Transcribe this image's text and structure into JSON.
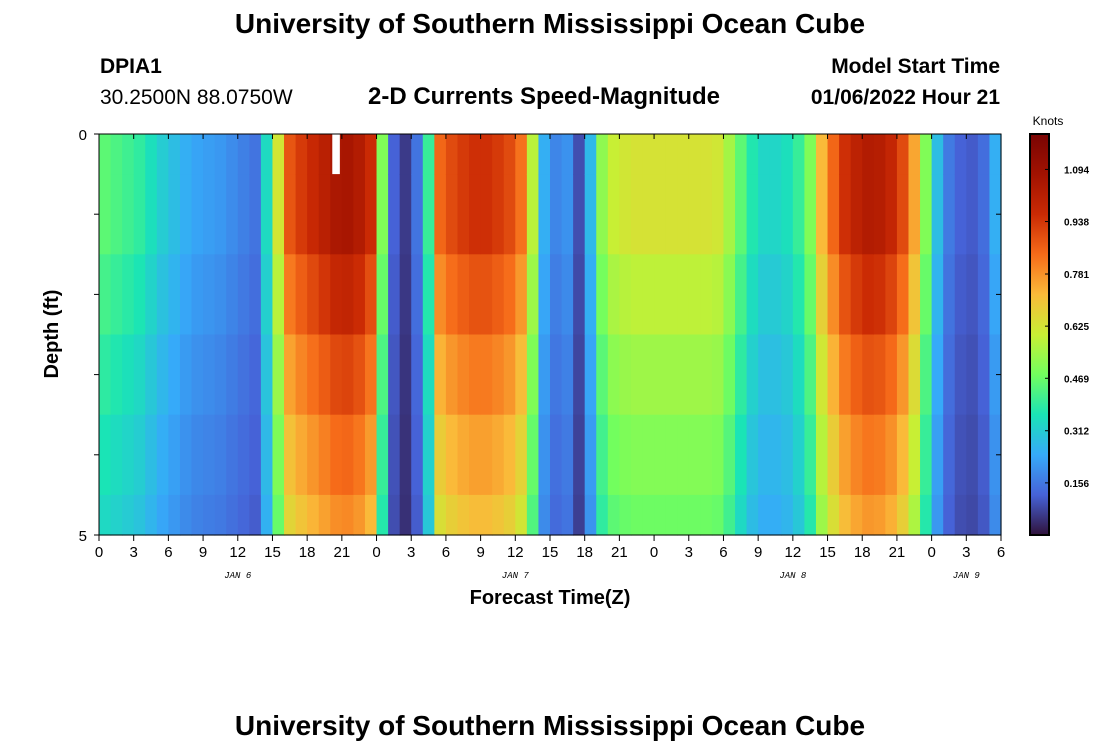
{
  "header": {
    "title": "University of Southern Mississippi Ocean Cube",
    "station_id": "DPIA1",
    "coords": "30.2500N  88.0750W",
    "subtitle": "2-D Currents Speed-Magnitude",
    "model_label": "Model Start Time",
    "model_time": "01/06/2022 Hour 21"
  },
  "footer": {
    "title": "University of Southern Mississippi Ocean Cube"
  },
  "chart_data": {
    "type": "heatmap",
    "title": "2-D Currents Speed-Magnitude",
    "xlabel": "Forecast Time(Z)",
    "ylabel": "Depth (ft)",
    "ylim": [
      0,
      5
    ],
    "y_ticks": [
      "0",
      "5"
    ],
    "x_tick_labels": [
      "0",
      "3",
      "6",
      "9",
      "12",
      "15",
      "18",
      "21",
      "0",
      "3",
      "6",
      "9",
      "12",
      "15",
      "18",
      "21",
      "0",
      "3",
      "6",
      "9",
      "12",
      "15",
      "18",
      "21",
      "0",
      "3",
      "6"
    ],
    "date_labels": [
      {
        "text": "JAN 6",
        "hour": 12
      },
      {
        "text": "JAN 7",
        "hour": 36
      },
      {
        "text": "JAN 8",
        "hour": 60
      },
      {
        "text": "JAN 9",
        "hour": 75
      }
    ],
    "x_range_hours": [
      0,
      78
    ],
    "depth_bins_ft": [
      0,
      0.5,
      1.5,
      2.5,
      3.5,
      4.5,
      5
    ],
    "time_columns": 78,
    "column_speeds_knots": [
      0.45,
      0.43,
      0.41,
      0.39,
      0.35,
      0.31,
      0.28,
      0.25,
      0.23,
      0.22,
      0.21,
      0.19,
      0.17,
      0.15,
      0.34,
      0.62,
      0.88,
      0.93,
      0.97,
      1.01,
      1.05,
      1.06,
      1.03,
      0.96,
      0.5,
      0.12,
      0.06,
      0.15,
      0.4,
      0.85,
      0.9,
      0.93,
      0.95,
      0.95,
      0.93,
      0.9,
      0.83,
      0.58,
      0.25,
      0.18,
      0.2,
      0.09,
      0.27,
      0.52,
      0.6,
      0.62,
      0.63,
      0.63,
      0.63,
      0.63,
      0.63,
      0.63,
      0.63,
      0.62,
      0.55,
      0.45,
      0.37,
      0.33,
      0.33,
      0.35,
      0.4,
      0.5,
      0.72,
      0.85,
      0.95,
      1.0,
      1.03,
      1.02,
      0.98,
      0.9,
      0.75,
      0.5,
      0.28,
      0.16,
      0.12,
      0.11,
      0.14,
      0.25
    ],
    "depth_factors": [
      1.0,
      1.0,
      0.93,
      0.86,
      0.8,
      0.75
    ],
    "gap_column_hour": 20,
    "colorbar": {
      "label": "Knots",
      "range": [
        0,
        1.2
      ],
      "ticks": [
        "1.094",
        "0.938",
        "0.781",
        "0.625",
        "0.469",
        "0.312",
        "0.156"
      ],
      "tick_values": [
        1.094,
        0.938,
        0.781,
        0.625,
        0.469,
        0.312,
        0.156
      ]
    }
  }
}
